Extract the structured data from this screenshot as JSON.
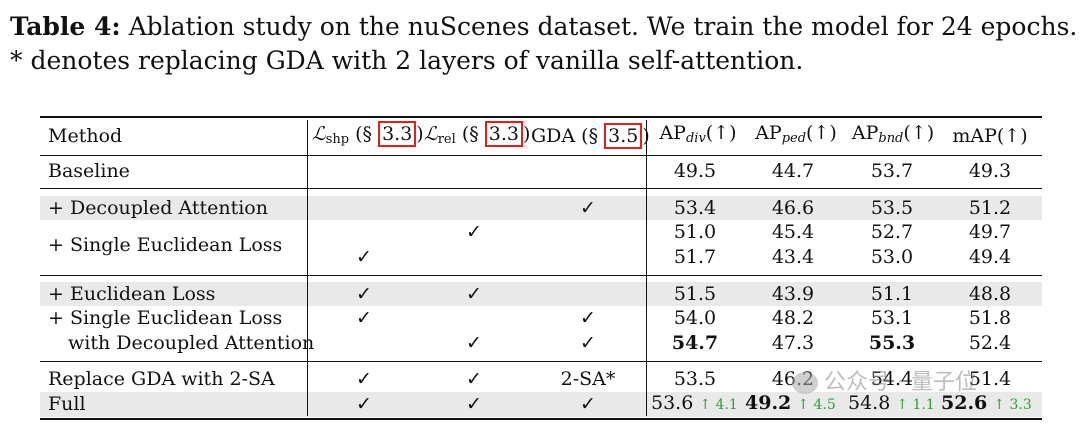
{
  "caption": {
    "label": "Table 4:",
    "line1": " Ablation study on the nuScenes dataset. We train the model for 24 epochs.",
    "line2": "* denotes replacing GDA with 2 layers of vanilla self-attention."
  },
  "header": {
    "method": "Method",
    "shp": {
      "symbol": "ℒ",
      "sub": "shp",
      "open": "(§ ",
      "ref": "3.3",
      "close": ")"
    },
    "rel": {
      "symbol": "ℒ",
      "sub": "rel",
      "open": "(§ ",
      "ref": "3.3",
      "close": ")"
    },
    "gda": {
      "name": "GDA (§ ",
      "ref": "3.5",
      "close": ")"
    },
    "ap_div": {
      "base": "AP",
      "sub": "div",
      "arrow": "(↑)"
    },
    "ap_ped": {
      "base": "AP",
      "sub": "ped",
      "arrow": "(↑)"
    },
    "ap_bnd": {
      "base": "AP",
      "sub": "bnd",
      "arrow": "(↑)"
    },
    "map": "mAP(↑)"
  },
  "rows": [
    {
      "method": "Baseline",
      "shp": "",
      "rel": "",
      "gda": "",
      "div": "49.5",
      "ped": "44.7",
      "bnd": "53.7",
      "map": "49.3"
    },
    {
      "method": "+ Decoupled Attention",
      "shp": "",
      "rel": "",
      "gda": "✓",
      "div": "53.4",
      "ped": "46.6",
      "bnd": "53.5",
      "map": "51.2"
    },
    {
      "method": "+ Single Euclidean Loss",
      "shp": "",
      "rel": "✓",
      "gda": "",
      "div": "51.0",
      "ped": "45.4",
      "bnd": "52.7",
      "map": "49.7"
    },
    {
      "method": "",
      "shp": "✓",
      "rel": "",
      "gda": "",
      "div": "51.7",
      "ped": "43.4",
      "bnd": "53.0",
      "map": "49.4"
    },
    {
      "method": "+ Euclidean Loss",
      "shp": "✓",
      "rel": "✓",
      "gda": "",
      "div": "51.5",
      "ped": "43.9",
      "bnd": "51.1",
      "map": "48.8"
    },
    {
      "method": "+ Single Euclidean Loss",
      "shp": "✓",
      "rel": "",
      "gda": "✓",
      "div": "54.0",
      "ped": "48.2",
      "bnd": "53.1",
      "map": "51.8"
    },
    {
      "method": "with Decoupled Attention",
      "shp": "",
      "rel": "✓",
      "gda": "✓",
      "div": "54.7",
      "ped": "47.3",
      "bnd": "55.3",
      "map": "52.4"
    },
    {
      "method": "Replace GDA with 2-SA",
      "shp": "✓",
      "rel": "✓",
      "gda": "2-SA*",
      "div": "53.5",
      "ped": "46.2",
      "bnd": "54.4",
      "map": "51.4"
    },
    {
      "method": "Full",
      "shp": "✓",
      "rel": "✓",
      "gda": "✓",
      "div": "53.6",
      "ped": "49.2",
      "bnd": "54.8",
      "map": "52.6"
    }
  ],
  "gains": {
    "div": "↑ 4.1",
    "ped": "↑ 4.5",
    "bnd": "↑ 1.1",
    "map": "↑ 3.3"
  },
  "watermark": "公众号 · 量子位"
}
